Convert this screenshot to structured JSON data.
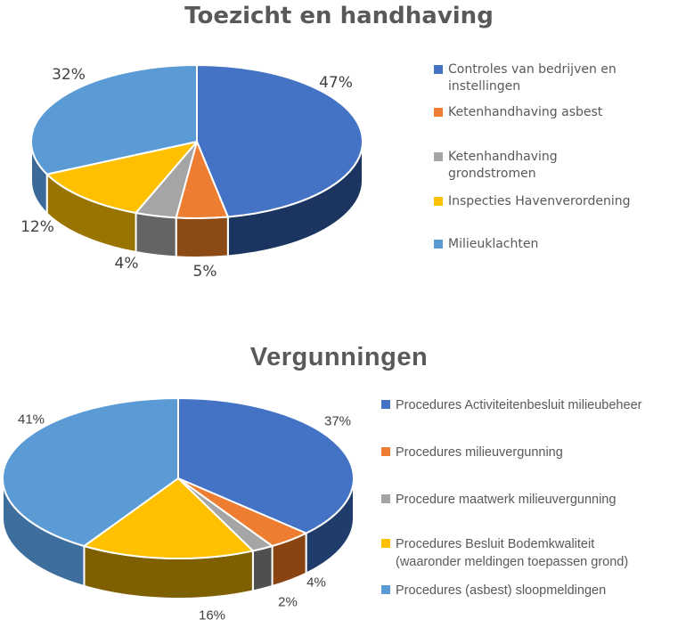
{
  "page": {
    "background": "#ffffff",
    "title_color": "#595959",
    "legend_text_color": "#595959",
    "data_label_color": "#404040"
  },
  "chart_data": [
    {
      "type": "pie",
      "style": "3d",
      "title": "Toezicht en handhaving",
      "labels": [
        "Controles van bedrijven en instellingen",
        "Ketenhandhaving asbest",
        "Ketenhandhaving grondstromen",
        "Inspecties Havenverordening",
        "Milieuklachten"
      ],
      "values": [
        47,
        5,
        4,
        12,
        32
      ],
      "unit": "%",
      "pct_labels": [
        "47%",
        "5%",
        "4%",
        "12%",
        "32%"
      ],
      "colors": [
        "#4472C4",
        "#ED7D31",
        "#A5A5A5",
        "#FFC000",
        "#5B9BD5"
      ],
      "side_colors": [
        "#1C3560",
        "#8C4A15",
        "#646464",
        "#9A7400",
        "#3B6A99"
      ],
      "legend_position": "right",
      "start_angle_deg": 0,
      "direction": "clockwise",
      "grid": false
    },
    {
      "type": "pie",
      "style": "3d",
      "title": "Vergunningen",
      "labels": [
        "Procedures Activiteitenbesluit milieubeheer",
        "Procedures milieuvergunning",
        "Procedure maatwerk milieuvergunning",
        "Procedures Besluit Bodemkwaliteit (waaronder meldingen toepassen grond)",
        "Procedures (asbest) sloopmeldingen"
      ],
      "values": [
        37,
        4,
        2,
        16,
        41
      ],
      "unit": "%",
      "pct_labels": [
        "37%",
        "4%",
        "2%",
        "16%",
        "41%"
      ],
      "colors": [
        "#4472C4",
        "#ED7D31",
        "#A5A5A5",
        "#FFC000",
        "#5B9BD5"
      ],
      "side_colors": [
        "#203C6B",
        "#8A4412",
        "#4F4F4F",
        "#7F6000",
        "#3E6E9E"
      ],
      "legend_position": "right",
      "start_angle_deg": 0,
      "direction": "clockwise",
      "grid": false
    }
  ]
}
